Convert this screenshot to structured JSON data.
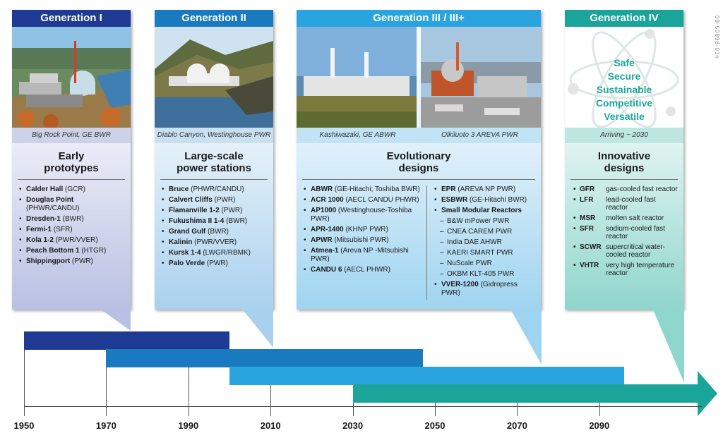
{
  "side_code": "09-50898-01n",
  "colors": {
    "gen1": "#1f3a93",
    "gen2": "#1a7ac0",
    "gen3": "#2aa4df",
    "gen4": "#1ba49a"
  },
  "gen1": {
    "header": "Generation I",
    "caption": "Big Rock Point, GE BWR",
    "title_line1": "Early",
    "title_line2": "prototypes",
    "items": [
      {
        "name": "Calder Hall",
        "detail": "(GCR)"
      },
      {
        "name": "Douglas Point",
        "detail": "(PHWR/CANDU)"
      },
      {
        "name": "Dresden-1",
        "detail": "(BWR)"
      },
      {
        "name": "Fermi-1",
        "detail": "(SFR)"
      },
      {
        "name": "Kola 1-2",
        "detail": "(PWR/VVER)"
      },
      {
        "name": "Peach Bottom 1",
        "detail": "(HTGR)"
      },
      {
        "name": "Shippingport",
        "detail": "(PWR)"
      }
    ]
  },
  "gen2": {
    "header": "Generation II",
    "caption": "Diablo Canyon, Westinghouse PWR",
    "title_line1": "Large-scale",
    "title_line2": "power stations",
    "items": [
      {
        "name": "Bruce",
        "detail": "(PHWR/CANDU)"
      },
      {
        "name": "Calvert Cliffs",
        "detail": "(PWR)"
      },
      {
        "name": "Flamanville 1-2",
        "detail": "(PWR)"
      },
      {
        "name": "Fukushima II 1-4",
        "detail": "(BWR)"
      },
      {
        "name": "Grand Gulf",
        "detail": "(BWR)"
      },
      {
        "name": "Kalinin",
        "detail": "(PWR/VVER)"
      },
      {
        "name": "Kursk 1-4",
        "detail": "(LWGR/RBMK)"
      },
      {
        "name": "Palo Verde",
        "detail": "(PWR)"
      }
    ]
  },
  "gen3": {
    "header": "Generation III / III+",
    "caption_left": "Kashiwazaki, GE ABWR",
    "caption_right": "Olkiluoto 3 AREVA PWR",
    "title_line1": "Evolutionary",
    "title_line2": "designs",
    "left_items": [
      {
        "name": "ABWR",
        "detail": "(GE-Hitachi; Toshiba BWR)"
      },
      {
        "name": "ACR 1000",
        "detail": "(AECL CANDU PHWR)"
      },
      {
        "name": "AP1000",
        "detail": "(Westinghouse-Toshiba PWR)"
      },
      {
        "name": "APR-1400",
        "detail": "(KHNP PWR)"
      },
      {
        "name": "APWR",
        "detail": "(Mitsubishi PWR)"
      },
      {
        "name": "Atmea-1",
        "detail": "(Areva NP -Mitsubishi PWR)"
      },
      {
        "name": "CANDU 6",
        "detail": "(AECL PHWR)"
      }
    ],
    "right_items": [
      {
        "name": "EPR",
        "detail": "(AREVA NP PWR)"
      },
      {
        "name": "ESBWR",
        "detail": "(GE-Hitachi BWR)"
      },
      {
        "name": "Small Modular Reactors",
        "detail": ""
      }
    ],
    "smr_items": [
      "B&W mPower PWR",
      "CNEA CAREM PWR",
      "India DAE AHWR",
      "KAERI SMART PWR",
      "NuScale PWR",
      "OKBM KLT-405 PWR"
    ],
    "last_item": {
      "name": "VVER-1200",
      "detail": "(Gidropress PWR)"
    }
  },
  "gen4": {
    "header": "Generation IV",
    "benefits": [
      "Safe",
      "Secure",
      "Sustainable",
      "Competitive",
      "Versatile"
    ],
    "caption": "Arriving ~ 2030",
    "title_line1": "Innovative",
    "title_line2": "designs",
    "items": [
      {
        "code": "GFR",
        "desc": "gas-cooled fast reactor"
      },
      {
        "code": "LFR",
        "desc": "lead-cooled fast reactor"
      },
      {
        "code": "MSR",
        "desc": "molten salt reactor"
      },
      {
        "code": "SFR",
        "desc": "sodium-cooled fast reactor"
      },
      {
        "code": "SCWR",
        "desc": "supercritical water-cooled reactor"
      },
      {
        "code": "VHTR",
        "desc": "very high temperature reactor"
      }
    ]
  },
  "timeline": {
    "years": [
      "1950",
      "1970",
      "1990",
      "2010",
      "2030",
      "2050",
      "2070",
      "2090"
    ],
    "spans": [
      {
        "generation": "Generation I",
        "start": 1950,
        "end": 2000
      },
      {
        "generation": "Generation II",
        "start": 1970,
        "end": 2047
      },
      {
        "generation": "Generation III / III+",
        "start": 2000,
        "end": 2096
      },
      {
        "generation": "Generation IV",
        "start": 2030,
        "end": 2120
      }
    ]
  }
}
